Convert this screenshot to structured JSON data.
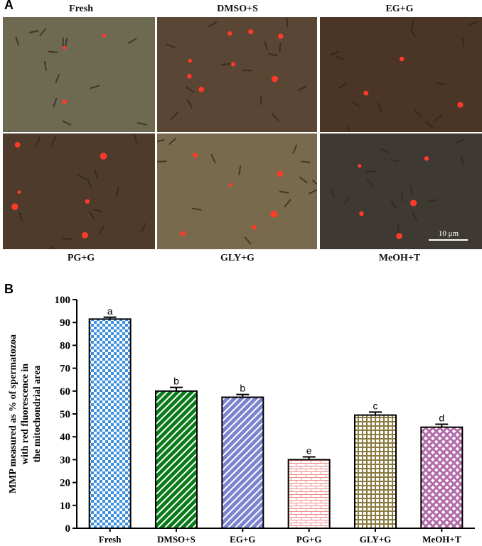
{
  "panel_a": {
    "letter": "A",
    "images": [
      {
        "label": "Fresh",
        "tone": "#6e6a52",
        "dots": 3
      },
      {
        "label": "DMSO+S",
        "tone": "#5a4634",
        "dots": 8
      },
      {
        "label": "EG+G",
        "tone": "#4a3526",
        "dots": 3
      },
      {
        "label": "PG+G",
        "tone": "#4e3b2b",
        "dots": 6
      },
      {
        "label": "GLY+G",
        "tone": "#7a6a4d",
        "dots": 6
      },
      {
        "label": "MeOH+T",
        "tone": "#3e3a33",
        "dots": 5
      }
    ],
    "scale_bar": "10 μm"
  },
  "panel_b": {
    "letter": "B"
  },
  "chart_data": {
    "type": "bar",
    "categories": [
      "Fresh",
      "DMSO+S",
      "EG+G",
      "PG+G",
      "GLY+G",
      "MeOH+T"
    ],
    "values": [
      91.5,
      60,
      57.3,
      30,
      49.5,
      44.2
    ],
    "errors": [
      0.8,
      1.6,
      1.2,
      1.2,
      1.3,
      1.3
    ],
    "letters": [
      "a",
      "b",
      "b",
      "e",
      "c",
      "d"
    ],
    "ylabel_lines": [
      "MMP measured as % of spermatozoa",
      "with red fluorescence in",
      "the mitochondrial area"
    ],
    "ylim": [
      0,
      100
    ],
    "yticks": [
      0,
      10,
      20,
      30,
      40,
      50,
      60,
      70,
      80,
      90,
      100
    ],
    "colors": [
      "#3d8fe0",
      "#0a7a1a",
      "#7c84d0",
      "#f08a88",
      "#8a7a3e",
      "#b26aa8"
    ]
  }
}
